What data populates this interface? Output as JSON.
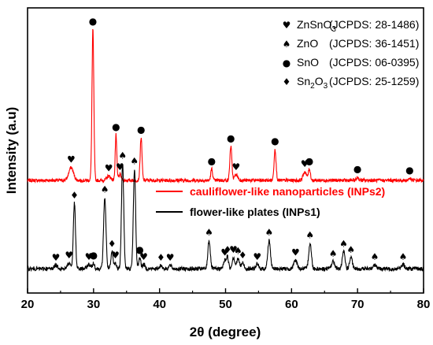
{
  "chart_data": {
    "type": "line",
    "xlabel_prefix": "2",
    "xlabel_theta": "θ",
    "xlabel_suffix": " (degree)",
    "ylabel": "Intensity (a.u)",
    "xlim": [
      20,
      80
    ],
    "xticks": [
      "20",
      "30",
      "40",
      "50",
      "60",
      "70",
      "80"
    ],
    "grid": false,
    "legend_position": "top-right",
    "phases": [
      {
        "id": "ZnSnO3",
        "glyph": "♥",
        "name_base": "ZnSnO",
        "name_sub": "3",
        "ref": "(JCPDS: 28-1486)"
      },
      {
        "id": "ZnO",
        "glyph": "♠",
        "name_base": "ZnO",
        "name_sub": "",
        "ref": "(JCPDS: 36-1451)"
      },
      {
        "id": "SnO",
        "glyph": "●",
        "name_base": "SnO",
        "name_sub": "",
        "ref": "(JCPDS: 06-0395)"
      },
      {
        "id": "Sn2O3",
        "glyph": "♦",
        "name_base": "Sn",
        "name_sub": "2",
        "name_tail": "O",
        "name_sub2": "3",
        "ref": "(JCPDS: 25-1259)"
      }
    ],
    "series": [
      {
        "name": "cauliflower-like nanoparticles (INPs2)",
        "color": "#ff0000",
        "baseline": 0.395,
        "noise": 0.006,
        "peaks": [
          {
            "x": 26.6,
            "h": 0.045,
            "w": 0.35,
            "m": "ZnSnO3"
          },
          {
            "x": 29.9,
            "h": 0.53,
            "w": 0.14,
            "m": "SnO"
          },
          {
            "x": 32.3,
            "h": 0.015,
            "w": 0.3,
            "m": "ZnSnO3"
          },
          {
            "x": 33.4,
            "h": 0.16,
            "w": 0.12,
            "m": "SnO"
          },
          {
            "x": 34.0,
            "h": 0.02,
            "w": 0.2,
            "m": "ZnSnO3"
          },
          {
            "x": 37.2,
            "h": 0.15,
            "w": 0.14,
            "m": "SnO"
          },
          {
            "x": 47.9,
            "h": 0.04,
            "w": 0.14,
            "m": "SnO"
          },
          {
            "x": 50.8,
            "h": 0.12,
            "w": 0.15,
            "m": "SnO"
          },
          {
            "x": 51.6,
            "h": 0.02,
            "w": 0.25,
            "m": "ZnSnO3"
          },
          {
            "x": 57.5,
            "h": 0.11,
            "w": 0.15,
            "m": "SnO"
          },
          {
            "x": 62.0,
            "h": 0.03,
            "w": 0.25,
            "m": "ZnSnO3"
          },
          {
            "x": 62.7,
            "h": 0.04,
            "w": 0.16,
            "m": "SnO"
          },
          {
            "x": 70.0,
            "h": 0.012,
            "w": 0.15,
            "m": "SnO"
          },
          {
            "x": 77.9,
            "h": 0.008,
            "w": 0.15,
            "m": "SnO"
          }
        ]
      },
      {
        "name": "flower-like plates (INPs1)",
        "color": "#000000",
        "baseline": 0.085,
        "noise": 0.007,
        "peaks": [
          {
            "x": 24.3,
            "h": 0.012,
            "w": 0.3,
            "m": "ZnSnO3"
          },
          {
            "x": 26.3,
            "h": 0.02,
            "w": 0.25,
            "m": "ZnSnO3"
          },
          {
            "x": 27.1,
            "h": 0.23,
            "w": 0.16,
            "m": "Sn2O3"
          },
          {
            "x": 29.3,
            "h": 0.015,
            "w": 0.25,
            "m": "ZnSnO3"
          },
          {
            "x": 30.0,
            "h": 0.02,
            "w": 0.15,
            "m": "SnO"
          },
          {
            "x": 31.7,
            "h": 0.25,
            "w": 0.18,
            "m": "ZnO"
          },
          {
            "x": 32.8,
            "h": 0.06,
            "w": 0.15,
            "m": "Sn2O3"
          },
          {
            "x": 33.3,
            "h": 0.02,
            "w": 0.15,
            "m": "ZnSnO3"
          },
          {
            "x": 34.4,
            "h": 0.37,
            "w": 0.17,
            "m": "ZnO"
          },
          {
            "x": 36.2,
            "h": 0.35,
            "w": 0.17,
            "m": "ZnO"
          },
          {
            "x": 37.0,
            "h": 0.04,
            "w": 0.15,
            "m": "SnO"
          },
          {
            "x": 37.6,
            "h": 0.015,
            "w": 0.2,
            "m": "ZnSnO3"
          },
          {
            "x": 40.2,
            "h": 0.012,
            "w": 0.2,
            "m": "Sn2O3"
          },
          {
            "x": 41.6,
            "h": 0.012,
            "w": 0.2,
            "m": "ZnSnO3"
          },
          {
            "x": 47.5,
            "h": 0.1,
            "w": 0.18,
            "m": "ZnO"
          },
          {
            "x": 49.9,
            "h": 0.03,
            "w": 0.2,
            "m": "ZnSnO3"
          },
          {
            "x": 50.3,
            "h": 0.04,
            "w": 0.15,
            "m": "Sn2O3"
          },
          {
            "x": 51.2,
            "h": 0.04,
            "w": 0.2,
            "m": "ZnSnO3"
          },
          {
            "x": 51.9,
            "h": 0.035,
            "w": 0.2,
            "m": "ZnO"
          },
          {
            "x": 52.6,
            "h": 0.02,
            "w": 0.2,
            "m": "Sn2O3"
          },
          {
            "x": 54.8,
            "h": 0.015,
            "w": 0.2,
            "m": "ZnSnO3"
          },
          {
            "x": 56.6,
            "h": 0.1,
            "w": 0.2,
            "m": "ZnO"
          },
          {
            "x": 60.6,
            "h": 0.03,
            "w": 0.25,
            "m": "ZnSnO3"
          },
          {
            "x": 62.8,
            "h": 0.09,
            "w": 0.2,
            "m": "ZnO"
          },
          {
            "x": 66.3,
            "h": 0.025,
            "w": 0.25,
            "m": "ZnO"
          },
          {
            "x": 67.9,
            "h": 0.06,
            "w": 0.2,
            "m": "ZnO"
          },
          {
            "x": 69.0,
            "h": 0.04,
            "w": 0.2,
            "m": "ZnO"
          },
          {
            "x": 72.6,
            "h": 0.015,
            "w": 0.25,
            "m": "ZnO"
          },
          {
            "x": 76.9,
            "h": 0.015,
            "w": 0.25,
            "m": "ZnO"
          }
        ]
      }
    ]
  }
}
